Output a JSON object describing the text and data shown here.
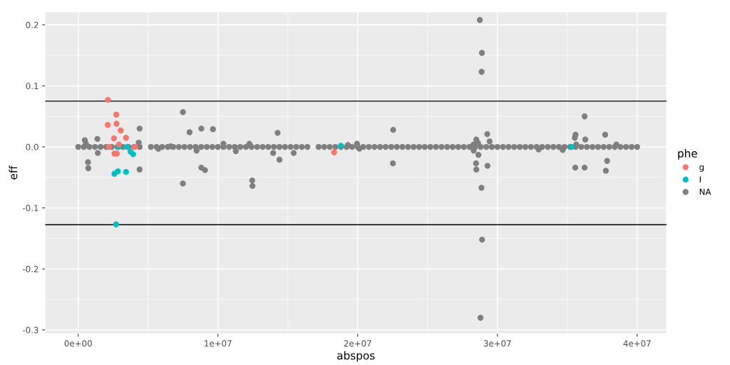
{
  "chart_data": {
    "type": "scatter",
    "xlabel": "abspos",
    "ylabel": "eff",
    "legend_title": "phe",
    "legend": "right",
    "grid": true,
    "marker": "circle",
    "xlim": [
      -2360000,
      42100000
    ],
    "ylim": [
      -0.306,
      0.221
    ],
    "xticks": [
      {
        "value": 0,
        "label": "0e+00"
      },
      {
        "value": 10000000,
        "label": "1e+07"
      },
      {
        "value": 20000000,
        "label": "2e+07"
      },
      {
        "value": 30000000,
        "label": "3e+07"
      },
      {
        "value": 40000000,
        "label": "4e+07"
      }
    ],
    "yticks": [
      {
        "value": -0.3,
        "label": "-0.3"
      },
      {
        "value": -0.2,
        "label": "-0.2"
      },
      {
        "value": -0.1,
        "label": "-0.1"
      },
      {
        "value": 0,
        "label": "0.0"
      },
      {
        "value": 0.1,
        "label": "0.1"
      },
      {
        "value": 0.2,
        "label": "0.2"
      }
    ],
    "ref_lines": [
      {
        "axis": "y",
        "value": 0.075,
        "color": "#000000"
      },
      {
        "axis": "y",
        "value": -0.1275,
        "color": "#000000"
      }
    ],
    "series": [
      {
        "name": "g",
        "color": "#f8766d",
        "x": [
          2120000.0,
          2720000.0,
          2740000.0,
          2110000.0,
          3040000.0,
          2560000.0,
          3420000.0,
          2910000.0,
          2200000.0,
          2590000.0,
          2760000.0,
          18310000.0,
          4060000.0
        ],
        "values": [
          0.077,
          0.053,
          0.038,
          0.036,
          0.027,
          0.014,
          0.015,
          0.004,
          0,
          -0.011,
          -0.011,
          -0.009,
          0
        ]
      },
      {
        "name": "I",
        "color": "#00bfc4",
        "x": [
          2590000.0,
          2840000.0,
          3420000.0,
          3740000.0,
          3930000.0,
          2710000.0,
          2900000.0,
          3500000.0,
          18800000.0,
          35300000.0
        ],
        "values": [
          -0.044,
          -0.04,
          -0.041,
          -0.008,
          -0.012,
          -0.127,
          0,
          0,
          0.002,
          0
        ]
      },
      {
        "name": "NA",
        "color": "#7f7f7f",
        "x": [
          0,
          400000.0,
          800000.0,
          1200000.0,
          1600000.0,
          2000000.0,
          2400000.0,
          2800000.0,
          3200000.0,
          3600000.0,
          4000000.0,
          4400000.0,
          5200000.0,
          5600000.0,
          6000000.0,
          6400000.0,
          6800000.0,
          7200000.0,
          7600000.0,
          8000000.0,
          8400000.0,
          8800000.0,
          9200000.0,
          9600000.0,
          10000000.0,
          10400000.0,
          10800000.0,
          11200000.0,
          11600000.0,
          12000000.0,
          12400000.0,
          12800000.0,
          13200000.0,
          13600000.0,
          14000000.0,
          14400000.0,
          14800000.0,
          15200000.0,
          15600000.0,
          16000000.0,
          16400000.0,
          17200000.0,
          17600000.0,
          18000000.0,
          18400000.0,
          18800000.0,
          19200000.0,
          19600000.0,
          20000000.0,
          20400000.0,
          20800000.0,
          21200000.0,
          21600000.0,
          22000000.0,
          22400000.0,
          22800000.0,
          23200000.0,
          23600000.0,
          24000000.0,
          24400000.0,
          24800000.0,
          25200000.0,
          25600000.0,
          26000000.0,
          26400000.0,
          26800000.0,
          27200000.0,
          27600000.0,
          28000000.0,
          28400000.0,
          28800000.0,
          29200000.0,
          29600000.0,
          30000000.0,
          30400000.0,
          30800000.0,
          31200000.0,
          31600000.0,
          32000000.0,
          32400000.0,
          32800000.0,
          33200000.0,
          33600000.0,
          34000000.0,
          34400000.0,
          34800000.0,
          35200000.0,
          35600000.0,
          36000000.0,
          36400000.0,
          36800000.0,
          37200000.0,
          37600000.0,
          38000000.0,
          38400000.0,
          38800000.0,
          39200000.0,
          39600000.0,
          40000000.0,
          470000.0,
          550000.0,
          1370000.0,
          1400000.0,
          700000.0,
          720000.0,
          4390000.0,
          4330000.0,
          4390000.0,
          7490000.0,
          7970000.0,
          8810000.0,
          9640000.0,
          7490000.0,
          8810000.0,
          9070000.0,
          8470000.0,
          10390000.0,
          11280000.0,
          12250000.0,
          12450000.0,
          12470000.0,
          14270000.0,
          13950000.0,
          14400000.0,
          15420000.0,
          5730000.0,
          6620000.0,
          19300000.0,
          19950000.0,
          20120000.0,
          22540000.0,
          22520000.0,
          28740000.0,
          28890000.0,
          28870000.0,
          29270000.0,
          29440000.0,
          28490000.0,
          28620000.0,
          28290000.0,
          28300000.0,
          28640000.0,
          28470000.0,
          28490000.0,
          29290000.0,
          28860000.0,
          28900000.0,
          28790000.0,
          32950000.0,
          34670000.0,
          36240000.0,
          35590000.0,
          35540000.0,
          36290000.0,
          35640000.0,
          37710000.0,
          38510000.0,
          35570000.0,
          36240000.0,
          37850000.0,
          37760000.0
        ],
        "values": [
          0,
          0,
          0,
          0,
          0,
          0,
          0,
          0,
          0,
          0,
          0,
          0,
          0,
          0,
          0,
          0,
          0,
          0,
          0,
          0,
          0,
          0,
          0,
          0,
          0,
          0,
          0,
          0,
          0,
          0,
          0,
          0,
          0,
          0,
          0,
          0,
          0,
          0,
          0,
          0,
          0,
          0,
          0,
          0,
          0,
          0,
          0,
          0,
          0,
          0,
          0,
          0,
          0,
          0,
          0,
          0,
          0,
          0,
          0,
          0,
          0,
          0,
          0,
          0,
          0,
          0,
          0,
          0,
          0,
          0,
          0,
          0,
          0,
          0,
          0,
          0,
          0,
          0,
          0,
          0,
          0,
          0,
          0,
          0,
          0,
          0,
          0,
          0,
          0,
          0,
          0,
          0,
          0,
          0,
          0,
          0,
          0,
          0,
          0,
          0.011,
          0.005,
          0.013,
          -0.01,
          -0.025,
          -0.035,
          0.03,
          0.007,
          -0.037,
          0.057,
          0.024,
          0.03,
          0.029,
          -0.06,
          -0.034,
          -0.038,
          -0.006,
          0.005,
          -0.007,
          0.005,
          -0.055,
          -0.064,
          0.023,
          -0.01,
          -0.021,
          -0.01,
          -0.003,
          0.001,
          0.003,
          0.005,
          -0.003,
          0.028,
          -0.027,
          0.208,
          0.154,
          0.123,
          0.021,
          0.009,
          0.012,
          0.006,
          0.004,
          -0.006,
          -0.013,
          -0.027,
          -0.037,
          -0.031,
          -0.067,
          -0.152,
          -0.28,
          -0.004,
          -0.005,
          0.05,
          0.02,
          0.015,
          0.012,
          0.004,
          0.02,
          0.004,
          -0.034,
          -0.034,
          -0.023,
          -0.039
        ]
      }
    ]
  }
}
